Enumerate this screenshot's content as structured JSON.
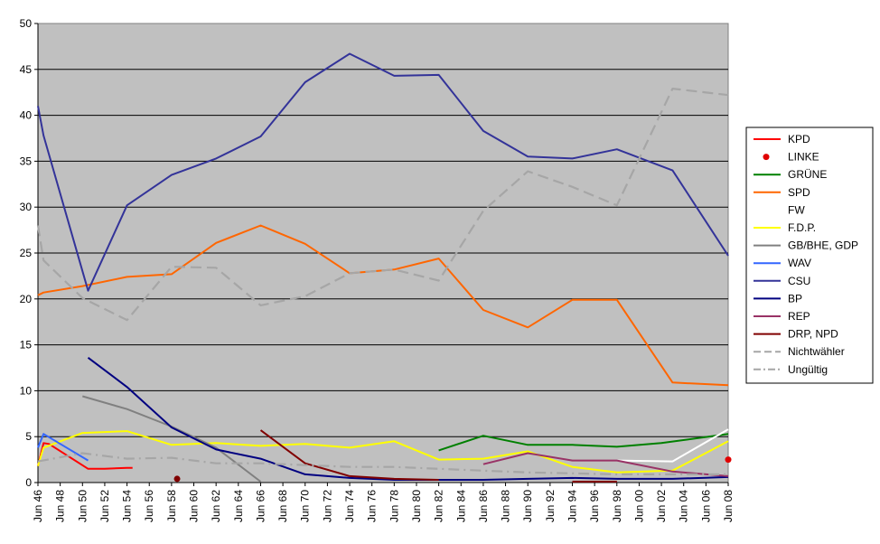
{
  "chart_data": {
    "type": "line",
    "title": "",
    "xlabel": "",
    "ylabel": "",
    "ylim": [
      0,
      50
    ],
    "y_ticks": [
      0,
      5,
      10,
      15,
      20,
      25,
      30,
      35,
      40,
      45,
      50
    ],
    "x_range": [
      1946,
      2008
    ],
    "x_ticks": [
      "Jun 46",
      "Jun 48",
      "Jun 50",
      "Jun 52",
      "Jun 54",
      "Jun 56",
      "Jun 58",
      "Jun 60",
      "Jun 62",
      "Jun 64",
      "Jun 66",
      "Jun 68",
      "Jun 70",
      "Jun 72",
      "Jun 74",
      "Jun 76",
      "Jun 78",
      "Jun 80",
      "Jun 82",
      "Jun 84",
      "Jun 86",
      "Jun 88",
      "Jun 90",
      "Jun 92",
      "Jun 94",
      "Jun 96",
      "Jun 98",
      "Jun 00",
      "Jun 02",
      "Jun 04",
      "Jun 06",
      "Jun 08"
    ],
    "x_tick_values": [
      1946,
      1948,
      1950,
      1952,
      1954,
      1956,
      1958,
      1960,
      1962,
      1964,
      1966,
      1968,
      1970,
      1972,
      1974,
      1976,
      1978,
      1980,
      1982,
      1984,
      1986,
      1988,
      1990,
      1992,
      1994,
      1996,
      1998,
      2000,
      2002,
      2004,
      2006,
      2008
    ],
    "plot_background": "#c0c0c0",
    "grid": true,
    "legend_position": "right",
    "series": [
      {
        "name": "KPD",
        "color": "#ff0000",
        "style": "solid",
        "points": [
          [
            1946,
            1.8
          ],
          [
            1946.5,
            4.3
          ],
          [
            1947,
            4.2
          ],
          [
            1950.5,
            1.5
          ],
          [
            1952,
            1.5
          ],
          [
            1954,
            1.6
          ],
          [
            1954.5,
            1.6
          ]
        ]
      },
      {
        "name": "LINKE",
        "color": "#e00000",
        "style": "marker",
        "points": [
          [
            2008,
            2.5
          ]
        ]
      },
      {
        "name": "GRÜNE",
        "color": "#008000",
        "style": "solid",
        "points": [
          [
            1982,
            3.5
          ],
          [
            1986,
            5.1
          ],
          [
            1990,
            4.1
          ],
          [
            1994,
            4.1
          ],
          [
            1998,
            3.9
          ],
          [
            2002,
            4.3
          ],
          [
            2008,
            5.3
          ]
        ]
      },
      {
        "name": "SPD",
        "color": "#ff6600",
        "style": "solid",
        "points": [
          [
            1946,
            20.4
          ],
          [
            1946.5,
            20.7
          ],
          [
            1950,
            21.4
          ],
          [
            1954,
            22.4
          ],
          [
            1958,
            22.7
          ],
          [
            1962,
            26.1
          ],
          [
            1966,
            28.0
          ],
          [
            1970,
            26.0
          ],
          [
            1974,
            22.8
          ],
          [
            1978,
            23.2
          ],
          [
            1982,
            24.4
          ],
          [
            1986,
            18.8
          ],
          [
            1990,
            16.9
          ],
          [
            1994,
            19.9
          ],
          [
            1998,
            19.9
          ],
          [
            2003,
            10.9
          ],
          [
            2008,
            10.6
          ]
        ]
      },
      {
        "name": "FW",
        "color": "#ffffff",
        "style": "solid",
        "points": [
          [
            1998,
            2.4
          ],
          [
            2003,
            2.3
          ],
          [
            2008,
            5.8
          ]
        ]
      },
      {
        "name": "F.D.P.",
        "color": "#ffff00",
        "style": "solid",
        "points": [
          [
            1946,
            1.8
          ],
          [
            1946.5,
            3.8
          ],
          [
            1950,
            5.4
          ],
          [
            1954,
            5.6
          ],
          [
            1958,
            4.1
          ],
          [
            1962,
            4.3
          ],
          [
            1966,
            4.0
          ],
          [
            1970,
            4.2
          ],
          [
            1974,
            3.8
          ],
          [
            1978,
            4.5
          ],
          [
            1982,
            2.5
          ],
          [
            1986,
            2.6
          ],
          [
            1990,
            3.4
          ],
          [
            1994,
            1.7
          ],
          [
            1998,
            1.1
          ],
          [
            2003,
            1.3
          ],
          [
            2008,
            4.5
          ]
        ]
      },
      {
        "name": "GB/BHE, GDP",
        "color": "#808080",
        "style": "solid",
        "points": [
          [
            1950,
            9.4
          ],
          [
            1954,
            8.0
          ],
          [
            1958,
            6.1
          ],
          [
            1962,
            3.8
          ],
          [
            1966,
            0.1
          ]
        ]
      },
      {
        "name": "WAV",
        "color": "#3366ff",
        "style": "solid",
        "points": [
          [
            1946,
            3.8
          ],
          [
            1946.5,
            5.3
          ],
          [
            1950.5,
            2.4
          ]
        ]
      },
      {
        "name": "CSU",
        "color": "#333399",
        "style": "solid",
        "points": [
          [
            1946,
            41.0
          ],
          [
            1946.5,
            37.8
          ],
          [
            1950.5,
            20.9
          ],
          [
            1954,
            30.2
          ],
          [
            1958,
            33.5
          ],
          [
            1962,
            35.3
          ],
          [
            1966,
            37.7
          ],
          [
            1970,
            43.6
          ],
          [
            1974,
            46.7
          ],
          [
            1978,
            44.3
          ],
          [
            1982,
            44.4
          ],
          [
            1986,
            38.3
          ],
          [
            1990,
            35.5
          ],
          [
            1994,
            35.3
          ],
          [
            1998,
            36.3
          ],
          [
            2003,
            34.0
          ],
          [
            2008,
            24.7
          ]
        ]
      },
      {
        "name": "BP",
        "color": "#000080",
        "style": "solid",
        "points": [
          [
            1950.5,
            13.6
          ],
          [
            1954,
            10.4
          ],
          [
            1958,
            6.0
          ],
          [
            1962,
            3.6
          ],
          [
            1966,
            2.6
          ],
          [
            1970,
            0.9
          ],
          [
            1974,
            0.5
          ],
          [
            1978,
            0.3
          ],
          [
            1982,
            0.3
          ],
          [
            1986,
            0.3
          ],
          [
            1990,
            0.4
          ],
          [
            1994,
            0.5
          ],
          [
            1998,
            0.4
          ],
          [
            2003,
            0.4
          ],
          [
            2008,
            0.6
          ]
        ]
      },
      {
        "name": "REP",
        "color": "#993366",
        "style": "solid",
        "points": [
          [
            1986,
            2.0
          ],
          [
            1990,
            3.2
          ],
          [
            1994,
            2.4
          ],
          [
            1998,
            2.4
          ],
          [
            2003,
            1.2
          ],
          [
            2008,
            0.7
          ]
        ]
      },
      {
        "name": "DRP, NPD",
        "color": "#800000",
        "style": "solid",
        "points": [
          [
            1966,
            5.7
          ],
          [
            1970,
            2.1
          ],
          [
            1974,
            0.7
          ],
          [
            1978,
            0.4
          ],
          [
            1982,
            0.3
          ],
          [
            1994,
            0.1
          ],
          [
            1998,
            0.1
          ]
        ],
        "breaks_after": [
          [
            1982,
            1994
          ]
        ],
        "markers": [
          [
            1958.5,
            0.4
          ]
        ]
      },
      {
        "name": "Nichtwähler",
        "color": "#a6a6a6",
        "style": "dashed",
        "points": [
          [
            1946,
            28.0
          ],
          [
            1946.5,
            24.2
          ],
          [
            1950,
            20.1
          ],
          [
            1954,
            17.7
          ],
          [
            1958,
            23.5
          ],
          [
            1962,
            23.4
          ],
          [
            1966,
            19.3
          ],
          [
            1970,
            20.3
          ],
          [
            1974,
            22.8
          ],
          [
            1978,
            23.2
          ],
          [
            1982,
            22.0
          ],
          [
            1986,
            29.6
          ],
          [
            1990,
            33.9
          ],
          [
            1994,
            32.2
          ],
          [
            1998,
            30.2
          ],
          [
            2003,
            42.9
          ],
          [
            2008,
            42.2
          ]
        ]
      },
      {
        "name": "Ungültig",
        "color": "#a6a6a6",
        "style": "dashdot",
        "points": [
          [
            1946,
            2.3
          ],
          [
            1950,
            3.2
          ],
          [
            1954,
            2.6
          ],
          [
            1958,
            2.7
          ],
          [
            1962,
            2.1
          ],
          [
            1966,
            2.1
          ],
          [
            1970,
            1.9
          ],
          [
            1974,
            1.7
          ],
          [
            1978,
            1.7
          ],
          [
            1982,
            1.5
          ],
          [
            1986,
            1.3
          ],
          [
            1990,
            1.1
          ],
          [
            1994,
            1.0
          ],
          [
            1998,
            0.9
          ],
          [
            2003,
            0.9
          ],
          [
            2008,
            0.9
          ]
        ]
      }
    ]
  }
}
